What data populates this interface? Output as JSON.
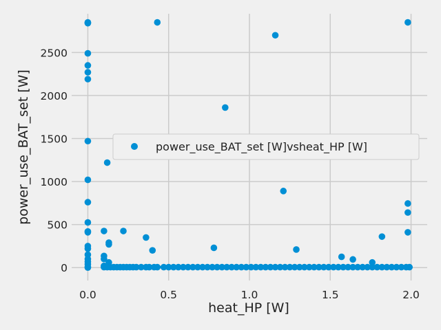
{
  "chart_data": {
    "type": "scatter",
    "xlabel": "heat_HP [W]",
    "ylabel": "power_use_BAT_set [W]",
    "xlim": [
      -0.1,
      2.1
    ],
    "ylim": [
      -150,
      2950
    ],
    "xticks": [
      0.0,
      0.5,
      1.0,
      1.5,
      2.0
    ],
    "xtick_labels": [
      "0.0",
      "0.5",
      "1.0",
      "1.5",
      "2.0"
    ],
    "yticks": [
      0,
      500,
      1000,
      1500,
      2000,
      2500
    ],
    "ytick_labels": [
      "0",
      "500",
      "1000",
      "1500",
      "2000",
      "2500"
    ],
    "grid": true,
    "legend_position": "right",
    "colors": {
      "marker": "#008fd5",
      "grid": "#cbcbcb",
      "background": "#f0f0f0"
    },
    "series": [
      {
        "name": "power_use_BAT_set [W]vsheat_HP [W]",
        "points": [
          [
            0.0,
            2850
          ],
          [
            0.0,
            2845
          ],
          [
            0.0,
            2840
          ],
          [
            0.0,
            2490
          ],
          [
            0.0,
            2350
          ],
          [
            0.0,
            2270
          ],
          [
            0.0,
            2190
          ],
          [
            0.0,
            1470
          ],
          [
            0.0,
            1020
          ],
          [
            0.0,
            760
          ],
          [
            0.0,
            525
          ],
          [
            0.0,
            420
          ],
          [
            0.0,
            410
          ],
          [
            0.0,
            250
          ],
          [
            0.0,
            220
          ],
          [
            0.0,
            150
          ],
          [
            0.0,
            100
          ],
          [
            0.0,
            70
          ],
          [
            0.0,
            40
          ],
          [
            0.0,
            10
          ],
          [
            0.0,
            0
          ],
          [
            0.1,
            425
          ],
          [
            0.1,
            135
          ],
          [
            0.1,
            100
          ],
          [
            0.12,
            1220
          ],
          [
            0.13,
            290
          ],
          [
            0.13,
            270
          ],
          [
            0.13,
            60
          ],
          [
            0.22,
            425
          ],
          [
            0.36,
            350
          ],
          [
            0.4,
            200
          ],
          [
            0.43,
            2850
          ],
          [
            0.78,
            230
          ],
          [
            0.85,
            1860
          ],
          [
            1.16,
            2700
          ],
          [
            1.21,
            890
          ],
          [
            1.29,
            210
          ],
          [
            1.57,
            125
          ],
          [
            1.64,
            95
          ],
          [
            1.76,
            60
          ],
          [
            1.82,
            360
          ],
          [
            1.98,
            2850
          ],
          [
            1.98,
            745
          ],
          [
            1.98,
            640
          ],
          [
            1.98,
            410
          ],
          [
            0.1,
            20
          ],
          [
            0.1,
            5
          ],
          [
            0.12,
            5
          ],
          [
            0.14,
            5
          ],
          [
            0.16,
            5
          ],
          [
            0.18,
            5
          ],
          [
            0.2,
            5
          ],
          [
            0.22,
            5
          ],
          [
            0.24,
            5
          ],
          [
            0.26,
            5
          ],
          [
            0.28,
            5
          ],
          [
            0.3,
            5
          ],
          [
            0.33,
            5
          ],
          [
            0.36,
            5
          ],
          [
            0.38,
            5
          ],
          [
            0.41,
            5
          ],
          [
            0.43,
            5
          ],
          [
            0.47,
            5
          ],
          [
            0.5,
            5
          ],
          [
            0.53,
            5
          ],
          [
            0.56,
            5
          ],
          [
            0.59,
            5
          ],
          [
            0.62,
            5
          ],
          [
            0.65,
            5
          ],
          [
            0.68,
            5
          ],
          [
            0.71,
            5
          ],
          [
            0.74,
            5
          ],
          [
            0.77,
            5
          ],
          [
            0.8,
            5
          ],
          [
            0.83,
            5
          ],
          [
            0.86,
            5
          ],
          [
            0.89,
            5
          ],
          [
            0.92,
            5
          ],
          [
            0.95,
            5
          ],
          [
            0.98,
            5
          ],
          [
            1.01,
            5
          ],
          [
            1.04,
            5
          ],
          [
            1.07,
            5
          ],
          [
            1.1,
            5
          ],
          [
            1.13,
            5
          ],
          [
            1.16,
            5
          ],
          [
            1.19,
            5
          ],
          [
            1.22,
            5
          ],
          [
            1.25,
            5
          ],
          [
            1.28,
            5
          ],
          [
            1.31,
            5
          ],
          [
            1.34,
            5
          ],
          [
            1.37,
            5
          ],
          [
            1.4,
            5
          ],
          [
            1.43,
            5
          ],
          [
            1.46,
            5
          ],
          [
            1.49,
            5
          ],
          [
            1.52,
            5
          ],
          [
            1.55,
            5
          ],
          [
            1.58,
            5
          ],
          [
            1.61,
            5
          ],
          [
            1.64,
            5
          ],
          [
            1.67,
            5
          ],
          [
            1.7,
            5
          ],
          [
            1.73,
            5
          ],
          [
            1.76,
            5
          ],
          [
            1.79,
            5
          ],
          [
            1.82,
            5
          ],
          [
            1.85,
            5
          ],
          [
            1.88,
            5
          ],
          [
            1.91,
            5
          ],
          [
            1.94,
            5
          ],
          [
            1.97,
            5
          ],
          [
            1.99,
            5
          ]
        ]
      }
    ]
  }
}
